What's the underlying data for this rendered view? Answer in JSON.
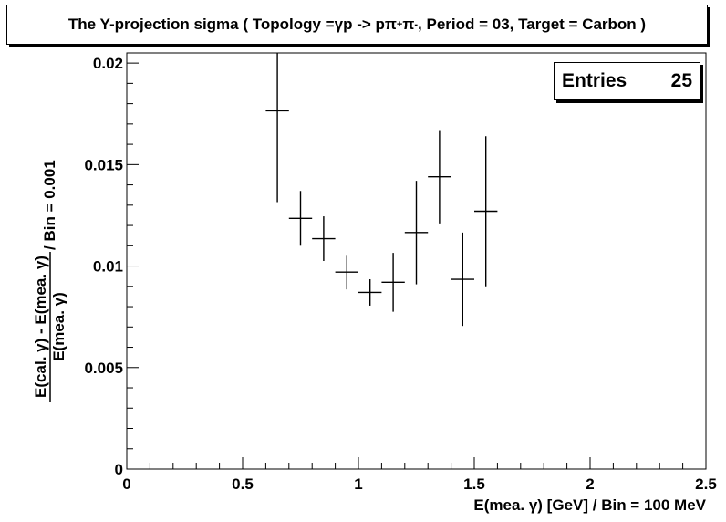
{
  "title": {
    "prefix": "The Y-projection sigma ( Topology = ",
    "gamma": "γ",
    "p_arrow": " p -> p ",
    "pi1": "π",
    "pi1_sup": "+",
    "pi2": " π",
    "pi2_sup": "-",
    "suffix": ", Period = 03, Target = Carbon )"
  },
  "stats": {
    "label": "Entries",
    "value": "25"
  },
  "chart_data": {
    "type": "scatter",
    "xlabel": "E(mea. γ) [GeV] / Bin = 100 MeV",
    "ylabel_numerator": "E(cal. γ) - E(mea. γ)",
    "ylabel_denominator": "E(mea. γ)",
    "ylabel_suffix": " / Bin = 0.001",
    "xlim": [
      0,
      2.5
    ],
    "ylim": [
      0,
      0.0205
    ],
    "x_ticks": [
      0,
      0.5,
      1,
      1.5,
      2,
      2.5
    ],
    "x_tick_labels": [
      "0",
      "0.5",
      "1",
      "1.5",
      "2",
      "2.5"
    ],
    "y_ticks": [
      0,
      0.005,
      0.01,
      0.015,
      0.02
    ],
    "y_tick_labels": [
      "0",
      "0.005",
      "0.01",
      "0.015",
      "0.02"
    ],
    "grid": false,
    "points": [
      {
        "x": 0.65,
        "y": 0.01765,
        "err_low": 0.0045,
        "err_high": 0.0029,
        "xerr": 0.05
      },
      {
        "x": 0.75,
        "y": 0.01235,
        "err_low": 0.00135,
        "err_high": 0.00135,
        "xerr": 0.05
      },
      {
        "x": 0.85,
        "y": 0.01135,
        "err_low": 0.0011,
        "err_high": 0.0011,
        "xerr": 0.05
      },
      {
        "x": 0.95,
        "y": 0.0097,
        "err_low": 0.00085,
        "err_high": 0.00085,
        "xerr": 0.05
      },
      {
        "x": 1.05,
        "y": 0.0087,
        "err_low": 0.00065,
        "err_high": 0.00065,
        "xerr": 0.05
      },
      {
        "x": 1.15,
        "y": 0.0092,
        "err_low": 0.00145,
        "err_high": 0.00145,
        "xerr": 0.05
      },
      {
        "x": 1.25,
        "y": 0.01165,
        "err_low": 0.00255,
        "err_high": 0.00255,
        "xerr": 0.05
      },
      {
        "x": 1.35,
        "y": 0.0144,
        "err_low": 0.0023,
        "err_high": 0.0023,
        "xerr": 0.05
      },
      {
        "x": 1.45,
        "y": 0.00935,
        "err_low": 0.0023,
        "err_high": 0.0023,
        "xerr": 0.05
      },
      {
        "x": 1.55,
        "y": 0.0127,
        "err_low": 0.0037,
        "err_high": 0.0037,
        "xerr": 0.05
      }
    ]
  }
}
